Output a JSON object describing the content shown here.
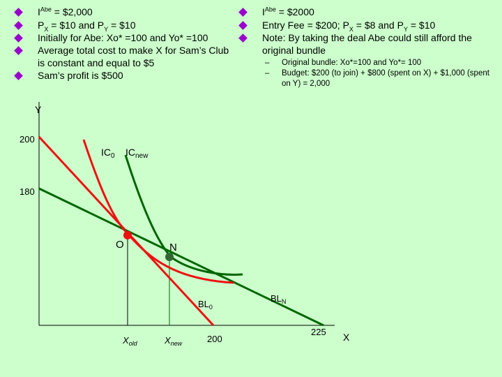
{
  "left_bullets": {
    "b1": {
      "pre": "I",
      "sup": "Abe",
      "post": " = $2,000"
    },
    "b2": {
      "a": "P",
      "a_sub": "X",
      "b": " = $10 and P",
      "b_sub": "Y",
      "c": " = $10"
    },
    "b3": "Initially for Abe: Xo* =100 and Yo* =100",
    "b4": "Average total cost to make X for Sam’s Club is constant and equal to $5",
    "b5": "Sam’s profit is $500"
  },
  "right_bullets": {
    "b1": {
      "pre": "I",
      "sup": "Abe",
      "post": " = $2000"
    },
    "b2": {
      "a": "Entry Fee = $200; P",
      "a_sub": "X",
      "b": " = $8 and P",
      "b_sub": "Y",
      "c": " = $10"
    },
    "b3": "Note: By taking the deal Abe could still afford the original bundle",
    "sub1": "Original bundle: Xo*=100 and Yo*= 100",
    "sub2": "Budget: $200 (to join) + $800 (spent on X) + $1,000 (spent on Y) = 2,000"
  },
  "graph": {
    "y_axis_label": "Y",
    "x_axis_label": "X",
    "y_tick_200": "200",
    "y_tick_180": "180",
    "x_tick_200": "200",
    "x_tick_225": "225",
    "x_old": {
      "main": "X",
      "sub": "old"
    },
    "x_new": {
      "main": "X",
      "sub": "new"
    },
    "ic0": {
      "main": "IC",
      "sub": "0"
    },
    "icnew": {
      "main": "IC",
      "sub": "new"
    },
    "bl0": {
      "main": "BL",
      "sub": "0"
    },
    "bln": {
      "main": "BL",
      "sub": "N"
    },
    "point_o": "O",
    "point_n": "N"
  },
  "colors": {
    "background": "#ccffcc",
    "bullet": "#9900cc",
    "red_curve": "#ee1111",
    "green_curve": "#006600",
    "point_o": "#ee1111",
    "point_n": "#336633"
  }
}
